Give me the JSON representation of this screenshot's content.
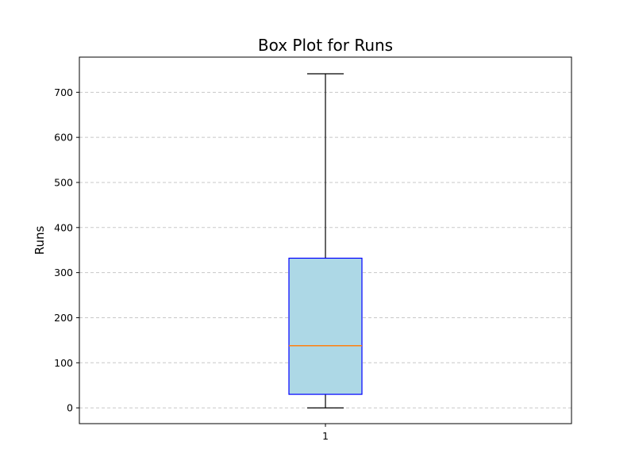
{
  "chart_data": {
    "type": "box",
    "title": "Box Plot for Runs",
    "xlabel": "",
    "ylabel": "Runs",
    "categories": [
      "1"
    ],
    "boxes": [
      {
        "category": "1",
        "whisker_low": 0,
        "q1": 30,
        "median": 138,
        "q3": 332,
        "whisker_high": 741
      }
    ],
    "outliers": [],
    "ylim": [
      -35,
      778
    ],
    "yticks": [
      0,
      100,
      200,
      300,
      400,
      500,
      600,
      700
    ],
    "grid": {
      "y": true,
      "x": false,
      "style": "dashed"
    },
    "colors": {
      "box_fill": "#add8e6",
      "box_edge": "#0000ff",
      "median": "#ff7f0e",
      "whisker": "#000000",
      "grid": "#c8c8c8"
    }
  }
}
